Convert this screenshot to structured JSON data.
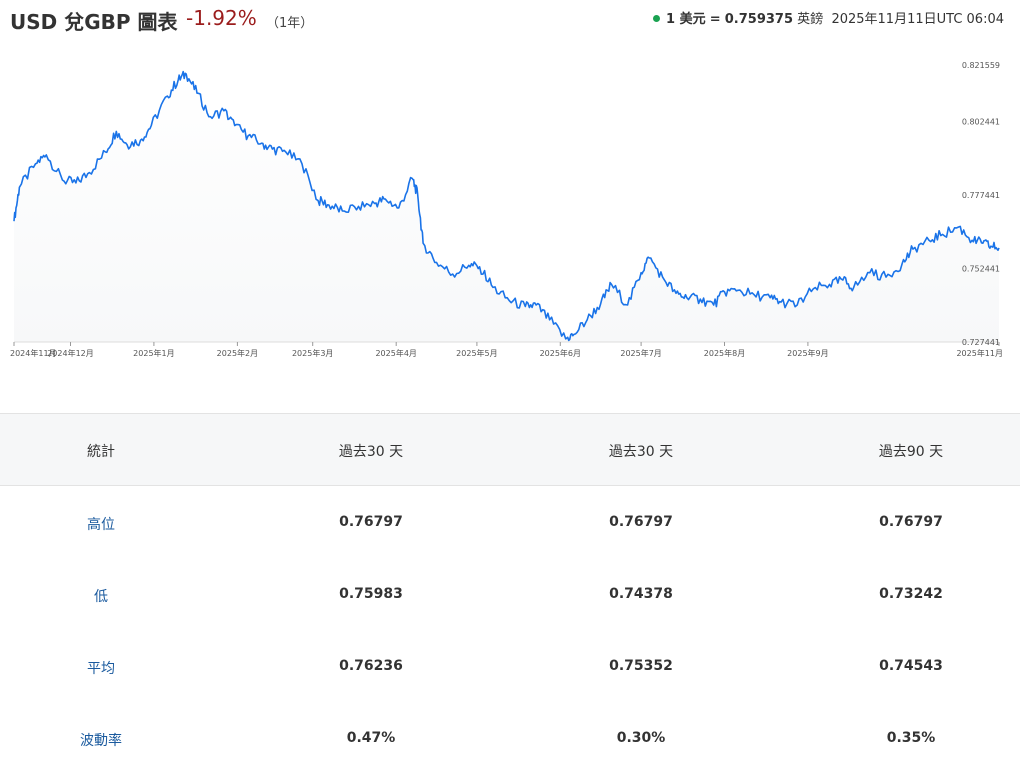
{
  "header": {
    "title": "USD 兌GBP 圖表",
    "change": "-1.92%",
    "period": "（1年）",
    "rate_prefix": "1 美元",
    "rate_eq": "=",
    "rate_value": "0.759375",
    "rate_suffix": "英鎊",
    "timestamp": "2025年11月11日UTC 06:04",
    "status_color": "#1aa251"
  },
  "chart_data": {
    "type": "area",
    "line_color": "#1a73e8",
    "ylim": [
      0.72744,
      0.82156
    ],
    "y_ticks": [
      "0.821559",
      "0.802441",
      "0.777441",
      "0.752441",
      "0.727441"
    ],
    "x_ticks": [
      "2024年11月",
      "2024年12月",
      "2025年1月",
      "2025年2月",
      "2025年3月",
      "2025年4月",
      "2025年5月",
      "2025年6月",
      "2025年7月",
      "2025年8月",
      "2025年9月",
      "2025年11月"
    ],
    "series": [
      {
        "x": [
          "2024-11-10",
          "2024-11-12",
          "2024-11-18",
          "2024-11-22",
          "2024-11-28",
          "2024-12-03",
          "2024-12-08",
          "2024-12-14",
          "2024-12-18",
          "2024-12-22",
          "2024-12-27",
          "2024-12-31",
          "2025-01-06",
          "2025-01-10",
          "2025-01-13",
          "2025-01-17",
          "2025-01-22",
          "2025-01-27",
          "2025-01-31",
          "2025-02-05",
          "2025-02-10",
          "2025-02-14",
          "2025-02-19",
          "2025-02-25",
          "2025-03-03",
          "2025-03-07",
          "2025-03-12",
          "2025-03-18",
          "2025-03-24",
          "2025-03-28",
          "2025-04-02",
          "2025-04-07",
          "2025-04-09",
          "2025-04-11",
          "2025-04-16",
          "2025-04-22",
          "2025-04-28",
          "2025-05-02",
          "2025-05-07",
          "2025-05-13",
          "2025-05-19",
          "2025-05-23",
          "2025-05-28",
          "2025-06-03",
          "2025-06-06",
          "2025-06-11",
          "2025-06-16",
          "2025-06-20",
          "2025-06-26",
          "2025-07-01",
          "2025-07-04",
          "2025-07-09",
          "2025-07-14",
          "2025-07-18",
          "2025-07-23",
          "2025-07-28",
          "2025-08-01",
          "2025-08-06",
          "2025-08-12",
          "2025-08-18",
          "2025-08-22",
          "2025-08-28",
          "2025-09-03",
          "2025-09-09",
          "2025-09-14",
          "2025-09-18",
          "2025-09-24",
          "2025-09-30",
          "2025-10-06",
          "2025-10-10",
          "2025-10-16",
          "2025-10-21",
          "2025-10-27",
          "2025-11-01",
          "2025-11-05",
          "2025-11-08",
          "2025-11-11"
        ],
        "values": [
          0.7685,
          0.78,
          0.788,
          0.791,
          0.7825,
          0.7815,
          0.785,
          0.792,
          0.799,
          0.7945,
          0.796,
          0.801,
          0.811,
          0.8165,
          0.8185,
          0.812,
          0.804,
          0.806,
          0.801,
          0.7975,
          0.795,
          0.793,
          0.792,
          0.788,
          0.7755,
          0.774,
          0.772,
          0.7735,
          0.7745,
          0.776,
          0.773,
          0.783,
          0.7775,
          0.761,
          0.7545,
          0.7505,
          0.7535,
          0.753,
          0.746,
          0.7415,
          0.7395,
          0.74,
          0.735,
          0.7285,
          0.73,
          0.735,
          0.7405,
          0.747,
          0.74,
          0.751,
          0.756,
          0.7495,
          0.744,
          0.7425,
          0.742,
          0.74,
          0.7445,
          0.745,
          0.7435,
          0.7425,
          0.741,
          0.74,
          0.7455,
          0.747,
          0.7485,
          0.746,
          0.751,
          0.7495,
          0.754,
          0.759,
          0.762,
          0.764,
          0.7665,
          0.762,
          0.761,
          0.76,
          0.7594
        ]
      }
    ]
  },
  "stats": {
    "headers": [
      "統計",
      "過去30 天",
      "過去30 天",
      "過去90 天"
    ],
    "rows": [
      {
        "label": "高位",
        "values": [
          "0.76797",
          "0.76797",
          "0.76797"
        ]
      },
      {
        "label": "低",
        "values": [
          "0.75983",
          "0.74378",
          "0.73242"
        ]
      },
      {
        "label": "平均",
        "values": [
          "0.76236",
          "0.75352",
          "0.74543"
        ]
      },
      {
        "label": "波動率",
        "values": [
          "0.47%",
          "0.30%",
          "0.35%"
        ]
      }
    ]
  }
}
